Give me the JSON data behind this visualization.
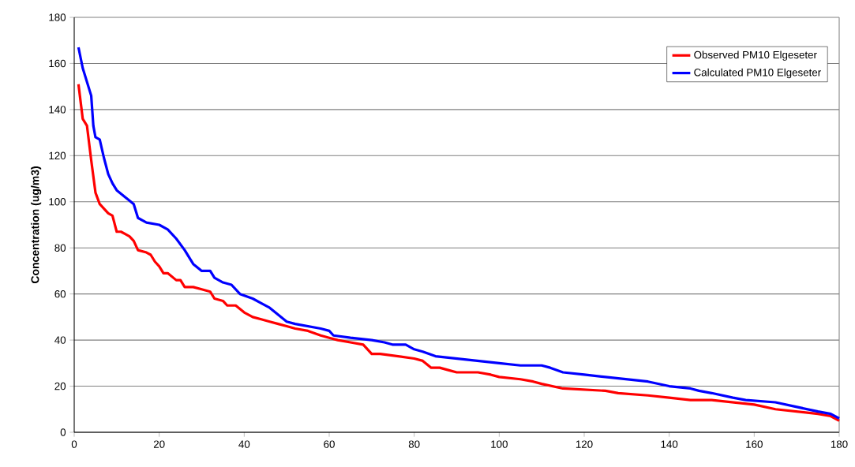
{
  "chart_data": {
    "type": "line",
    "ylabel": "Concentration (ug/m3)",
    "xlim": [
      0,
      180
    ],
    "xticks": [
      0,
      20,
      40,
      60,
      80,
      100,
      120,
      140,
      160,
      180
    ],
    "ylim": [
      0,
      180
    ],
    "yticks": [
      0,
      20,
      40,
      60,
      80,
      100,
      120,
      140,
      160,
      180
    ],
    "grid": "y",
    "legend": "top right",
    "marker": "none",
    "line_style": "solid",
    "series": [
      {
        "name": "Observed PM10 Elgeseter",
        "color": "#ff0000",
        "x": [
          1,
          2,
          3,
          4,
          5,
          6,
          7,
          8,
          9,
          10,
          11,
          12,
          13,
          14,
          15,
          17,
          18,
          19,
          20,
          21,
          22,
          24,
          25,
          26,
          28,
          30,
          32,
          33,
          35,
          36,
          38,
          40,
          42,
          44,
          46,
          48,
          50,
          52,
          55,
          58,
          60,
          62,
          65,
          68,
          70,
          72,
          76,
          80,
          82,
          84,
          86,
          88,
          90,
          95,
          98,
          100,
          105,
          108,
          110,
          115,
          125,
          128,
          135,
          140,
          145,
          150,
          155,
          160,
          165,
          170,
          175,
          178,
          180
        ],
        "values": [
          151,
          136,
          133,
          118,
          104,
          99,
          97,
          95,
          94,
          87,
          87,
          86,
          85,
          83,
          79,
          78,
          77,
          74,
          72,
          69,
          69,
          66,
          66,
          63,
          63,
          62,
          61,
          58,
          57,
          55,
          55,
          52,
          50,
          49,
          48,
          47,
          46,
          45,
          44,
          42,
          41,
          40,
          39,
          38,
          34,
          34,
          33,
          32,
          31,
          28,
          28,
          27,
          26,
          26,
          25,
          24,
          23,
          22,
          21,
          19,
          18,
          17,
          16,
          15,
          14,
          14,
          13,
          12,
          10,
          9,
          8,
          7,
          5
        ]
      },
      {
        "name": "Calculated PM10 Elgeseter",
        "color": "#0000ff",
        "x": [
          1,
          2,
          3,
          4,
          4.5,
          5,
          6,
          7,
          8,
          9,
          10,
          12,
          14,
          15,
          17,
          20,
          22,
          24,
          26,
          28,
          30,
          32,
          33,
          35,
          37,
          39,
          42,
          44,
          46,
          48,
          50,
          52,
          55,
          58,
          60,
          61,
          65,
          70,
          73,
          75,
          78,
          80,
          82,
          85,
          90,
          95,
          100,
          105,
          110,
          112,
          115,
          120,
          125,
          130,
          135,
          140,
          145,
          147,
          150,
          155,
          158,
          165,
          170,
          175,
          178,
          180
        ],
        "values": [
          167,
          158,
          152,
          146,
          133,
          128,
          127,
          119,
          112,
          108,
          105,
          102,
          99,
          93,
          91,
          90,
          88,
          84,
          79,
          73,
          70,
          70,
          67,
          65,
          64,
          60,
          58,
          56,
          54,
          51,
          48,
          47,
          46,
          45,
          44,
          42,
          41,
          40,
          39,
          38,
          38,
          36,
          35,
          33,
          32,
          31,
          30,
          29,
          29,
          28,
          26,
          25,
          24,
          23,
          22,
          20,
          19,
          18,
          17,
          15,
          14,
          13,
          11,
          9,
          8,
          6
        ]
      }
    ]
  }
}
